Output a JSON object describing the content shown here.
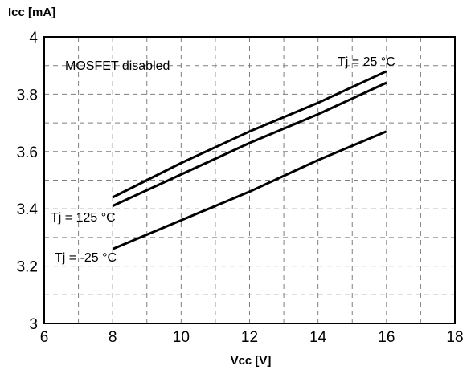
{
  "chart_data": {
    "type": "line",
    "ylabel": "Icc [mA]",
    "xlabel": "Vcc [V]",
    "xlim": [
      6,
      18
    ],
    "ylim": [
      3,
      4
    ],
    "xticks": [
      "6",
      "8",
      "10",
      "12",
      "14",
      "16",
      "18"
    ],
    "yticks": [
      "3",
      "3.2",
      "3.4",
      "3.6",
      "3.8",
      "4"
    ],
    "grid": true,
    "annotations": {
      "condition": "MOSFET disabled",
      "label_25": "Tj = 25 °C",
      "label_125": "Tj = 125 °C",
      "label_m25": "Tj = -25 °C"
    },
    "series": [
      {
        "name": "Tj = 25 °C",
        "x": [
          8,
          10,
          12,
          14,
          16
        ],
        "y": [
          3.44,
          3.56,
          3.67,
          3.77,
          3.88
        ]
      },
      {
        "name": "Tj = 125 °C",
        "x": [
          8,
          10,
          12,
          14,
          16
        ],
        "y": [
          3.41,
          3.52,
          3.63,
          3.73,
          3.84
        ]
      },
      {
        "name": "Tj = -25 °C",
        "x": [
          8,
          10,
          12,
          14,
          16
        ],
        "y": [
          3.26,
          3.36,
          3.46,
          3.57,
          3.67
        ]
      }
    ],
    "colors": {
      "line": "#000000",
      "grid": "#7f7f7f"
    }
  }
}
